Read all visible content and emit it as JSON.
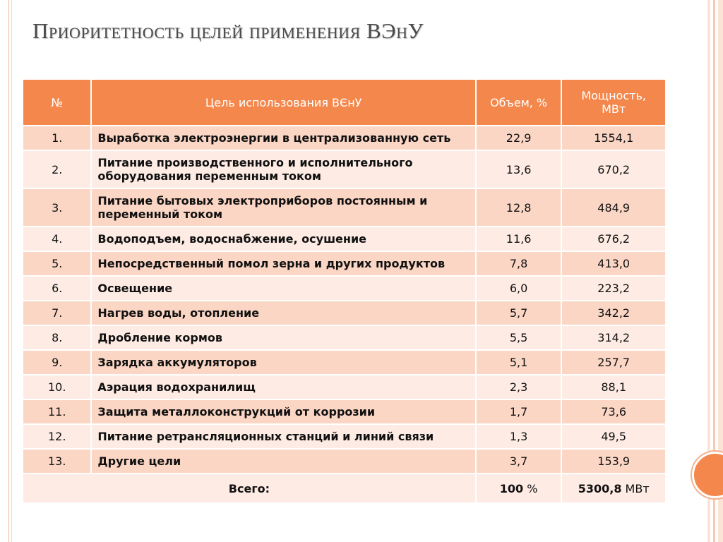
{
  "slide": {
    "title": "Приоритетность целей применения ВЭнУ"
  },
  "table": {
    "headers": {
      "num": "№",
      "goal": "Цель использования ВЄнУ",
      "volume": "Объем, %",
      "power": "Мощность, МВт"
    },
    "rows": [
      {
        "num": "1.",
        "goal": "Выработка электроэнергии в централизованную сеть",
        "volume": "22,9",
        "power": "1554,1"
      },
      {
        "num": "2.",
        "goal": "Питание производственного и исполнительного оборудования переменным током",
        "volume": "13,6",
        "power": "670,2"
      },
      {
        "num": "3.",
        "goal": "Питание бытовых электроприборов постоянным и переменный током",
        "volume": "12,8",
        "power": "484,9"
      },
      {
        "num": "4.",
        "goal": "Водоподъем, водоснабжение, осушение",
        "volume": "11,6",
        "power": "676,2"
      },
      {
        "num": "5.",
        "goal": "Непосредственный помол зерна и других продуктов",
        "volume": "7,8",
        "power": "413,0"
      },
      {
        "num": "6.",
        "goal": "Освещение",
        "volume": "6,0",
        "power": "223,2"
      },
      {
        "num": "7.",
        "goal": "Нагрев воды, отопление",
        "volume": "5,7",
        "power": "342,2"
      },
      {
        "num": "8.",
        "goal": "Дробление кормов",
        "volume": "5,5",
        "power": "314,2"
      },
      {
        "num": "9.",
        "goal": "Зарядка аккумуляторов",
        "volume": "5,1",
        "power": "257,7"
      },
      {
        "num": "10.",
        "goal": "Аэрация водохранилищ",
        "volume": "2,3",
        "power": "88,1"
      },
      {
        "num": "11.",
        "goal": "Защита металлоконструкций от коррозии",
        "volume": "1,7",
        "power": "73,6"
      },
      {
        "num": "12.",
        "goal": "Питание ретрансляционных станций и линий связи",
        "volume": "1,3",
        "power": "49,5"
      },
      {
        "num": "13.",
        "goal": "Другие цели",
        "volume": "3,7",
        "power": "153,9"
      }
    ],
    "total": {
      "label": "Всего:",
      "volume_value": "100",
      "volume_unit": " %",
      "power_value": "5300,8",
      "power_unit": " МВт"
    }
  }
}
